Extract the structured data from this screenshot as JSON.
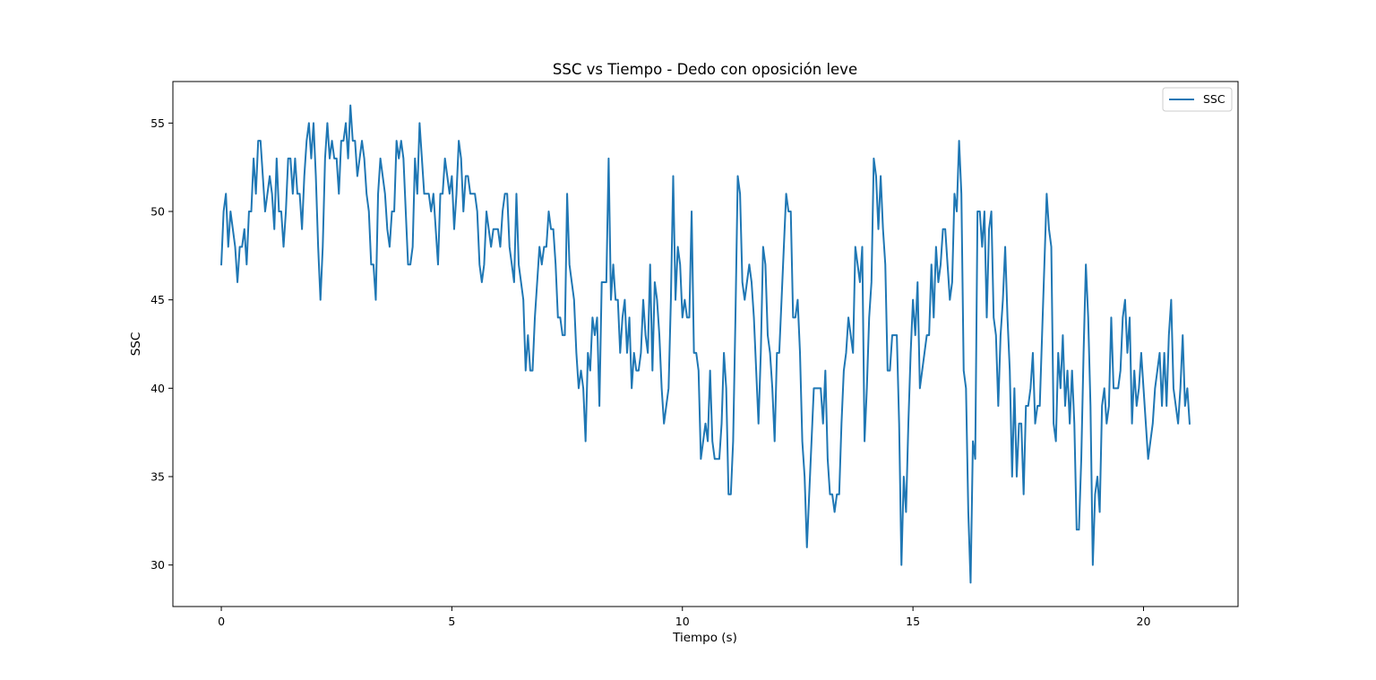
{
  "chart_data": {
    "type": "line",
    "title": "SSC vs Tiempo - Dedo con oposición leve",
    "xlabel": "Tiempo (s)",
    "ylabel": "SSC",
    "xlim": [
      -1.05,
      22.05
    ],
    "ylim": [
      27.65,
      57.35
    ],
    "x_ticks": [
      0,
      5,
      10,
      15,
      20
    ],
    "x_tick_labels": [
      "0",
      "5",
      "10",
      "15",
      "20"
    ],
    "y_ticks": [
      30,
      35,
      40,
      45,
      50,
      55
    ],
    "y_tick_labels": [
      "30",
      "35",
      "40",
      "45",
      "50",
      "55"
    ],
    "grid": false,
    "legend": "top-right",
    "x_start": 0,
    "x_step": 0.05,
    "series": [
      {
        "name": "SSC",
        "color": "#1f77b4",
        "values": [
          47,
          50,
          51,
          48,
          50,
          49,
          48,
          46,
          48,
          48,
          49,
          47,
          50,
          50,
          53,
          51,
          54,
          54,
          52,
          50,
          51,
          52,
          51,
          49,
          53,
          50,
          50,
          48,
          50,
          53,
          53,
          51,
          53,
          51,
          51,
          49,
          52,
          54,
          55,
          53,
          55,
          52,
          48,
          45,
          48,
          53,
          55,
          53,
          54,
          53,
          53,
          51,
          54,
          54,
          55,
          53,
          56,
          54,
          54,
          52,
          53,
          54,
          53,
          51,
          50,
          47,
          47,
          45,
          51,
          53,
          52,
          51,
          49,
          48,
          50,
          50,
          54,
          53,
          54,
          53,
          50,
          47,
          47,
          48,
          53,
          51,
          55,
          53,
          51,
          51,
          51,
          50,
          51,
          49,
          47,
          51,
          51,
          53,
          52,
          51,
          52,
          49,
          51,
          54,
          53,
          50,
          52,
          52,
          51,
          51,
          51,
          50,
          47,
          46,
          47,
          50,
          49,
          48,
          49,
          49,
          49,
          48,
          50,
          51,
          51,
          48,
          47,
          46,
          51,
          47,
          46,
          45,
          41,
          43,
          41,
          41,
          44,
          46,
          48,
          47,
          48,
          48,
          50,
          49,
          49,
          47,
          44,
          44,
          43,
          43,
          51,
          47,
          46,
          45,
          42,
          40,
          41,
          40,
          37,
          42,
          41,
          44,
          43,
          44,
          39,
          46,
          46,
          46,
          53,
          45,
          47,
          45,
          45,
          42,
          44,
          45,
          42,
          44,
          40,
          42,
          41,
          41,
          42,
          45,
          43,
          42,
          47,
          41,
          46,
          45,
          43,
          40,
          38,
          39,
          40,
          45,
          52,
          45,
          48,
          47,
          44,
          45,
          44,
          44,
          50,
          42,
          42,
          41,
          36,
          37,
          38,
          37,
          41,
          37,
          36,
          36,
          36,
          38,
          42,
          40,
          34,
          34,
          37,
          44,
          52,
          51,
          46,
          45,
          46,
          47,
          46,
          44,
          41,
          38,
          42,
          48,
          47,
          43,
          42,
          40,
          37,
          42,
          42,
          45,
          48,
          51,
          50,
          50,
          44,
          44,
          45,
          42,
          37,
          35,
          31,
          34,
          37,
          40,
          40,
          40,
          40,
          38,
          41,
          36,
          34,
          34,
          33,
          34,
          34,
          38,
          41,
          42,
          44,
          43,
          42,
          48,
          47,
          46,
          48,
          37,
          40,
          44,
          46,
          53,
          52,
          49,
          52,
          49,
          47,
          41,
          41,
          43,
          43,
          43,
          38,
          30,
          35,
          33,
          38,
          42,
          45,
          43,
          46,
          40,
          41,
          42,
          43,
          43,
          47,
          44,
          48,
          46,
          47,
          49,
          49,
          47,
          45,
          46,
          51,
          50,
          54,
          51,
          41,
          40,
          33,
          29,
          37,
          36,
          50,
          50,
          48,
          50,
          44,
          49,
          50,
          44,
          43,
          39,
          43,
          45,
          48,
          44,
          41,
          35,
          40,
          35,
          38,
          38,
          34,
          39,
          39,
          40,
          42,
          38,
          39,
          39,
          43,
          47,
          51,
          49,
          48,
          38,
          37,
          42,
          40,
          43,
          39,
          41,
          38,
          41,
          38,
          32,
          32,
          36,
          42,
          47,
          44,
          39,
          30,
          34,
          35,
          33,
          39,
          40,
          38,
          39,
          44,
          40,
          40,
          40,
          41,
          44,
          45,
          42,
          44,
          38,
          41,
          39,
          40,
          42,
          40,
          38,
          36,
          37,
          38,
          40,
          41,
          42,
          39,
          42,
          39,
          43,
          45,
          40,
          39,
          38,
          40,
          43,
          39,
          40,
          38
        ]
      }
    ]
  }
}
